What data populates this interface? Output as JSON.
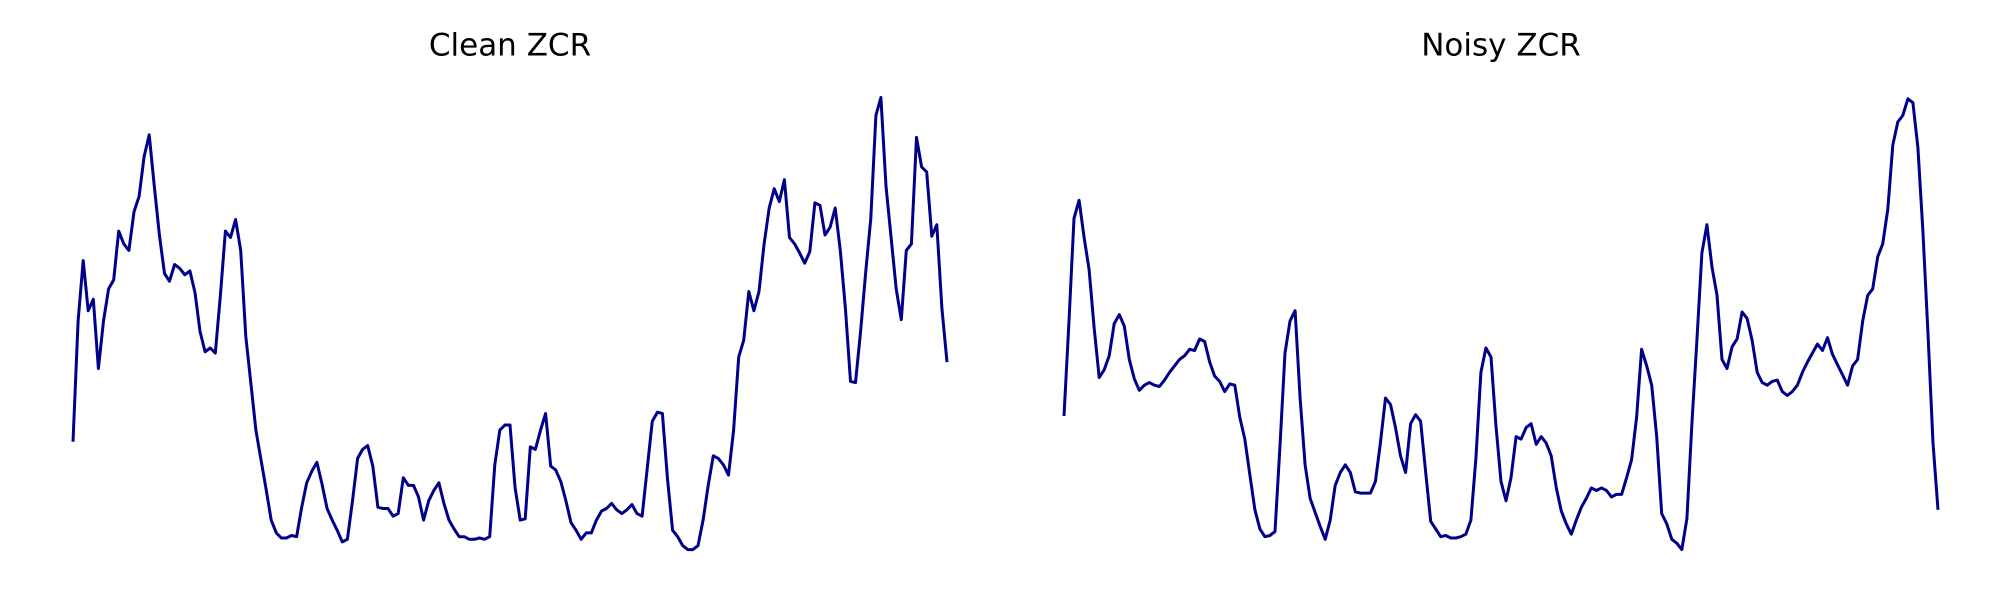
{
  "chart_data": [
    {
      "type": "line",
      "title": "Clean ZCR",
      "color": "#00008b",
      "ylim": [
        10,
        390
      ],
      "values": [
        106,
        200,
        247,
        208,
        217,
        163,
        200,
        225,
        232,
        270,
        260,
        255,
        285,
        297,
        328,
        345,
        305,
        267,
        237,
        231,
        244,
        241,
        236,
        239,
        222,
        192,
        176,
        179,
        175,
        220,
        270,
        265,
        279,
        255,
        188,
        152,
        115,
        92,
        69,
        45,
        35,
        31,
        31,
        33,
        32,
        55,
        74,
        83,
        90,
        73,
        54,
        45,
        37,
        28,
        30,
        60,
        93,
        100,
        103,
        87,
        55,
        54,
        54,
        48,
        50,
        78,
        72,
        72,
        63,
        45,
        60,
        68,
        74,
        58,
        45,
        38,
        32,
        32,
        30,
        30,
        31,
        30,
        32,
        88,
        115,
        119,
        119,
        70,
        45,
        46,
        102,
        100,
        115,
        128,
        87,
        84,
        75,
        60,
        43,
        37,
        30,
        35,
        35,
        45,
        52,
        54,
        58,
        53,
        50,
        53,
        57,
        50,
        48,
        85,
        122,
        129,
        128,
        77,
        37,
        32,
        25,
        22,
        22,
        25,
        45,
        72,
        95,
        93,
        88,
        80,
        115,
        172,
        185,
        223,
        208,
        223,
        260,
        288,
        303,
        293,
        310,
        265,
        260,
        253,
        245,
        254,
        292,
        290,
        267,
        273,
        288,
        255,
        210,
        153,
        152,
        192,
        238,
        280,
        360,
        374,
        305,
        265,
        225,
        201,
        255,
        260,
        343,
        320,
        316,
        266,
        275,
        210,
        168
      ]
    },
    {
      "type": "line",
      "title": "Noisy ZCR",
      "color": "#00008b",
      "ylim": [
        10,
        390
      ],
      "values": [
        126,
        200,
        280,
        294,
        265,
        240,
        195,
        156,
        162,
        173,
        198,
        205,
        196,
        170,
        155,
        146,
        150,
        152,
        150,
        149,
        154,
        160,
        165,
        170,
        173,
        178,
        177,
        186,
        184,
        168,
        157,
        153,
        145,
        151,
        150,
        125,
        108,
        80,
        53,
        38,
        32,
        33,
        36,
        103,
        175,
        200,
        208,
        140,
        88,
        62,
        51,
        40,
        30,
        45,
        72,
        82,
        88,
        82,
        67,
        66,
        66,
        66,
        75,
        105,
        140,
        135,
        117,
        95,
        82,
        120,
        127,
        122,
        82,
        44,
        38,
        32,
        33,
        31,
        31,
        32,
        34,
        45,
        93,
        160,
        179,
        172,
        118,
        75,
        60,
        78,
        110,
        108,
        117,
        120,
        104,
        110,
        105,
        95,
        70,
        52,
        42,
        34,
        45,
        55,
        62,
        70,
        68,
        70,
        68,
        63,
        65,
        65,
        78,
        92,
        125,
        178,
        165,
        150,
        110,
        50,
        42,
        30,
        27,
        22,
        46,
        120,
        185,
        253,
        275,
        242,
        220,
        170,
        163,
        180,
        186,
        207,
        202,
        185,
        160,
        152,
        150,
        153,
        154,
        145,
        142,
        145,
        150,
        160,
        168,
        175,
        182,
        177,
        187,
        174,
        166,
        158,
        150,
        165,
        170,
        200,
        220,
        225,
        250,
        260,
        287,
        337,
        355,
        360,
        373,
        370,
        335,
        270,
        190,
        105,
        53
      ]
    }
  ]
}
